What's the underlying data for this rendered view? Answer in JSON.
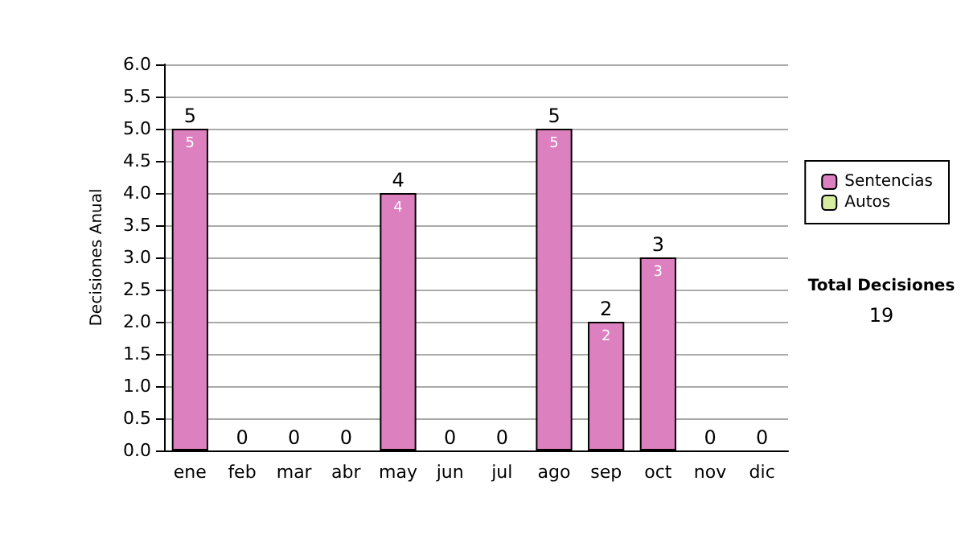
{
  "chart_data": {
    "type": "bar",
    "ylabel": "Decisiones Anual",
    "categories": [
      "ene",
      "feb",
      "mar",
      "abr",
      "may",
      "jun",
      "jul",
      "ago",
      "sep",
      "oct",
      "nov",
      "dic"
    ],
    "series": [
      {
        "name": "Sentencias",
        "color": "#dd80c0",
        "values": [
          5,
          0,
          0,
          0,
          4,
          0,
          0,
          5,
          2,
          3,
          0,
          0
        ],
        "value_labels": [
          "5",
          null,
          null,
          null,
          "4",
          null,
          null,
          "5",
          "2",
          "3",
          null,
          null
        ]
      },
      {
        "name": "Autos",
        "color": "#d8eca0",
        "values": [
          0,
          0,
          0,
          0,
          0,
          0,
          0,
          0,
          0,
          0,
          0,
          0
        ]
      }
    ],
    "stacked": true,
    "totals": [
      "5",
      "0",
      "0",
      "0",
      "4",
      "0",
      "0",
      "5",
      "2",
      "3",
      "0",
      "0"
    ],
    "ylim": [
      0,
      6
    ],
    "yticks": [
      {
        "value": 0,
        "label": "0.0"
      },
      0.5,
      {
        "value": 1,
        "label": "1.0"
      },
      1.5,
      {
        "value": 2,
        "label": "2.0"
      },
      2.5,
      {
        "value": 3,
        "label": "3.0"
      },
      3.5,
      {
        "value": 4,
        "label": "4.0"
      },
      4.5,
      {
        "value": 5,
        "label": "5.0"
      },
      5.5,
      {
        "value": 6,
        "label": "6.0"
      }
    ],
    "grid": "y",
    "legend": "right",
    "annotations": [
      "Total Decisiones",
      "19"
    ]
  }
}
